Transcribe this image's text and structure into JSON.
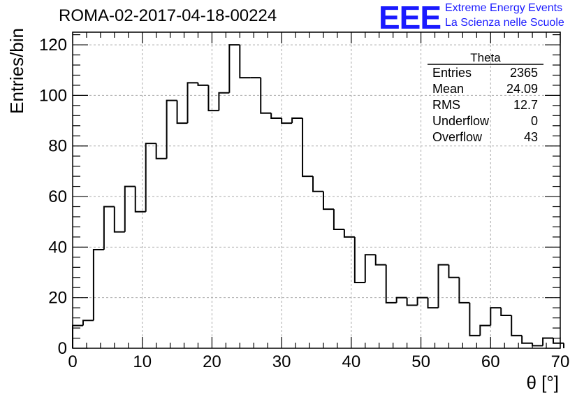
{
  "header": {
    "title": "ROMA-02-2017-04-18-00224",
    "logo_text": "EEE",
    "logo_line1": "Extreme Energy Events",
    "logo_line2": "La Scienza nelle Scuole",
    "logo_color": "#1a1aff"
  },
  "chart_data": {
    "type": "bar",
    "style": "step-histogram",
    "xlabel": "θ [°]",
    "ylabel": "Entries/bin",
    "xlim": [
      0,
      70
    ],
    "ylim": [
      0,
      125
    ],
    "x_ticks": [
      0,
      10,
      20,
      30,
      40,
      50,
      60,
      70
    ],
    "y_ticks": [
      0,
      20,
      40,
      60,
      80,
      100,
      120
    ],
    "grid": true,
    "bin_width": 1.5,
    "bin_edges_start": 0,
    "values": [
      9,
      11,
      39,
      56,
      46,
      64,
      54,
      81,
      75,
      98,
      89,
      105,
      104,
      94,
      101,
      120,
      107,
      107,
      93,
      91,
      89,
      91,
      68,
      62,
      55,
      47,
      44,
      26,
      37,
      33,
      18,
      20,
      17,
      20,
      16,
      33,
      28,
      18,
      5,
      9,
      16,
      13,
      5,
      2,
      1,
      4,
      2
    ],
    "stats_box": {
      "title": "Theta",
      "placement": "top-right",
      "rows": [
        {
          "label": "Entries",
          "value": "2365"
        },
        {
          "label": "Mean",
          "value": "24.09"
        },
        {
          "label": "RMS",
          "value": "12.7"
        },
        {
          "label": "Underflow",
          "value": "0"
        },
        {
          "label": "Overflow",
          "value": "43"
        }
      ]
    }
  }
}
